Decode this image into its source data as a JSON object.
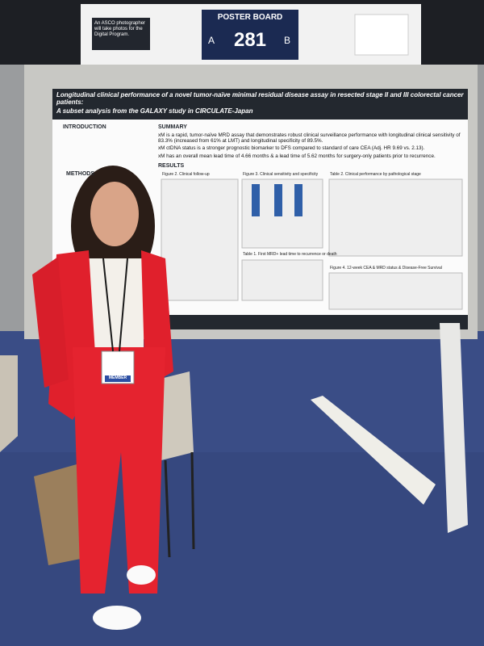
{
  "sign": {
    "asco_note": "An ASCO photographer will take photos for the Digital Program.",
    "board_label": "POSTER BOARD",
    "side_a": "A",
    "board_number": "281",
    "side_b": "B"
  },
  "poster": {
    "title": "Longitudinal clinical performance of a novel tumor-naïve minimal residual disease assay in resected stage II and III colorectal cancer patients:",
    "subtitle": "A subset analysis from the GALAXY study in CIRCULATE-Japan",
    "sections": {
      "introduction": "INTRODUCTION",
      "methods": "METHODS",
      "summary": "SUMMARY",
      "results": "RESULTS"
    },
    "summary_points": [
      "xM is a rapid, tumor-naïve MRD assay that demonstrates robust clinical surveillance performance with longitudinal clinical sensitivity of 83.3% (increased from 61% at LMT) and longitudinal specificity of 89.5%.",
      "xM ctDNA status is a stronger prognostic biomarker to DFS compared to standard of care CEA (Adj. HR 9.69 vs. 2.13).",
      "xM has an overall mean lead time of 4.66 months & a lead time of 5.62 months for surgery-only patients prior to recurrence."
    ],
    "figures": [
      "Figure 2. Clinical follow-up",
      "Figure 3. Clinical sensitivity and specificity",
      "Table 2. Clinical performance by pathological stage",
      "Table 1. First MRD+ lead time to recurrence or death",
      "Figure 4. 12-week CEA & MRD status & Disease-Free Survival"
    ]
  },
  "badge": "MEMBER"
}
